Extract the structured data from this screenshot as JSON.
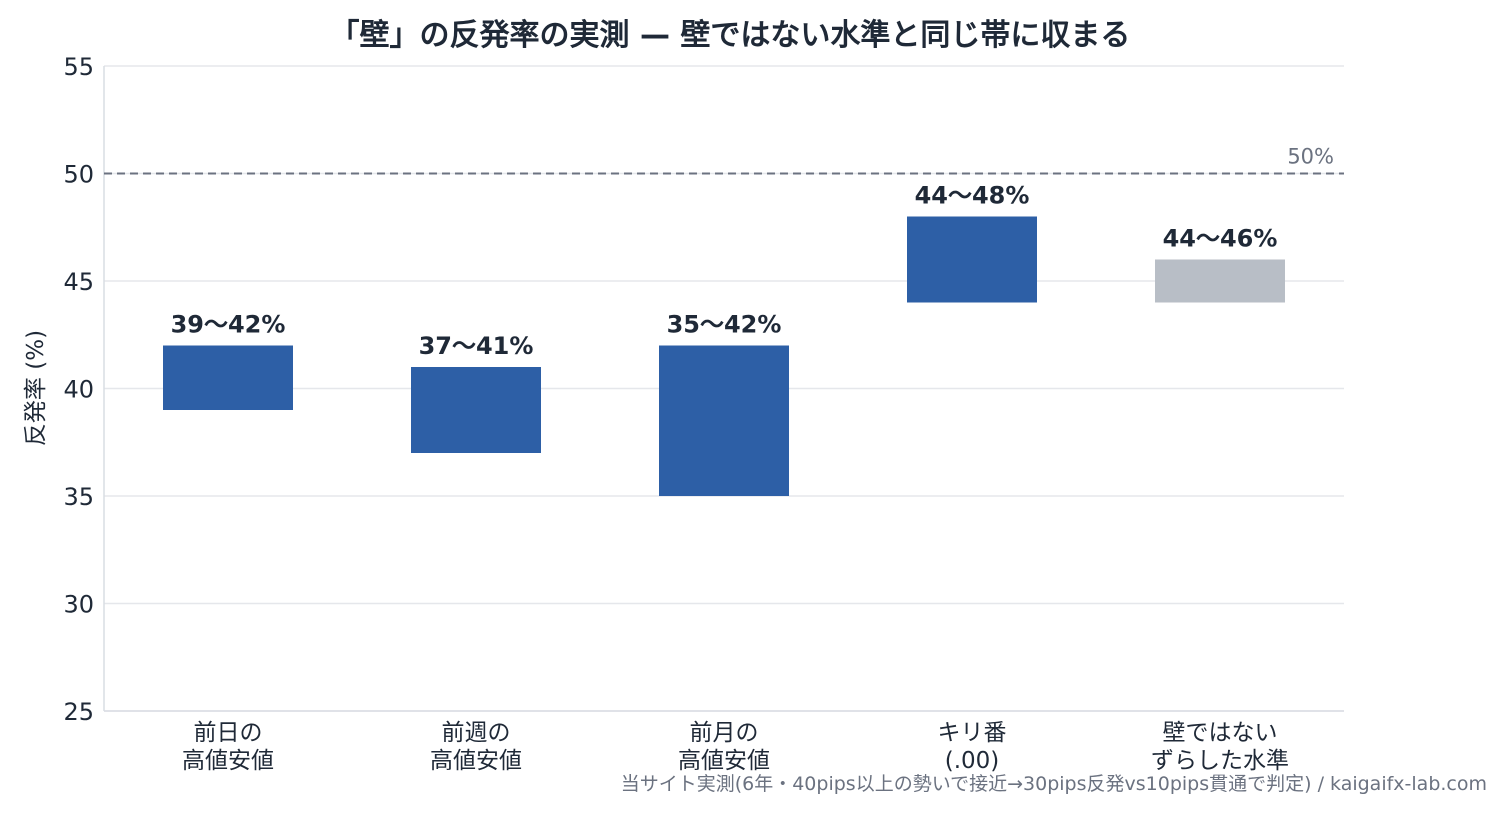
{
  "chart_data": {
    "type": "bar",
    "title": "「壁」の反発率の実測 — 壁ではない水準と同じ帯に収まる",
    "ylabel": "反発率 (%)",
    "xlabel": "",
    "ylim": [
      25,
      55
    ],
    "yticks": [
      25,
      30,
      35,
      40,
      45,
      50,
      55
    ],
    "grid": true,
    "categories": [
      [
        "前日の",
        "高値安値"
      ],
      [
        "前週の",
        "高値安値"
      ],
      [
        "前月の",
        "高値安値"
      ],
      [
        "キリ番",
        "(.00)"
      ],
      [
        "壁ではない",
        "ずらした水準"
      ]
    ],
    "ranges": [
      {
        "low": 39,
        "high": 42,
        "label": "39〜42%",
        "color": "#2d5fa6"
      },
      {
        "low": 37,
        "high": 41,
        "label": "37〜41%",
        "color": "#2d5fa6"
      },
      {
        "low": 35,
        "high": 42,
        "label": "35〜42%",
        "color": "#2d5fa6"
      },
      {
        "low": 44,
        "high": 48,
        "label": "44〜48%",
        "color": "#2d5fa6"
      },
      {
        "low": 44,
        "high": 46,
        "label": "44〜46%",
        "color": "#b8bec6"
      }
    ],
    "reference_line": {
      "value": 50,
      "label": "50%",
      "style": "dashed"
    },
    "source": "当サイト実測(6年・40pips以上の勢いで接近→30pips反発vs10pips貫通で判定) / kaigaifx-lab.com"
  }
}
